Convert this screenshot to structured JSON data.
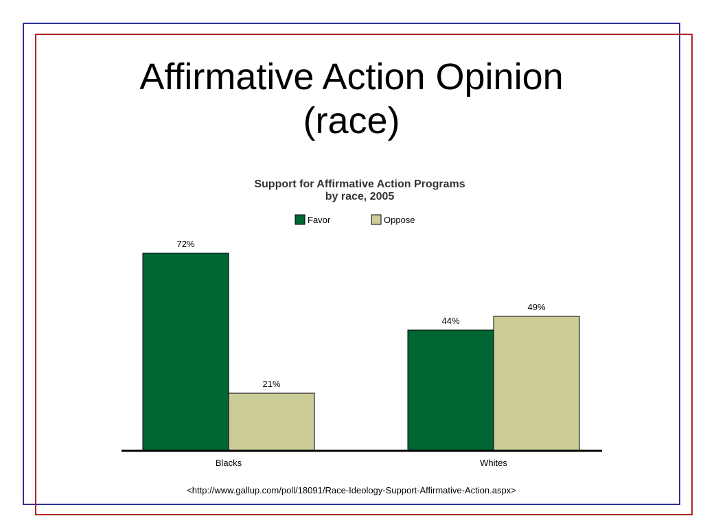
{
  "slide": {
    "title_line1": "Affirmative Action Opinion",
    "title_line2": "(race)",
    "source": "<http://www.gallup.com/poll/18091/Race-Ideology-Support-Affirmative-Action.aspx>"
  },
  "colors": {
    "frame_blue": "#2e3192",
    "frame_red": "#b22226",
    "favor": "#006633",
    "oppose": "#cccc99"
  },
  "chart_data": {
    "type": "bar",
    "title": "Support for Affirmative Action Programs",
    "subtitle": "by race, 2005",
    "categories": [
      "Blacks",
      "Whites"
    ],
    "series": [
      {
        "name": "Favor",
        "values": [
          72,
          44
        ],
        "labels": [
          "72%",
          "44%"
        ],
        "color": "#006633"
      },
      {
        "name": "Oppose",
        "values": [
          21,
          49
        ],
        "labels": [
          "21%",
          "49%"
        ],
        "color": "#cccc99"
      }
    ],
    "ylim": [
      0,
      100
    ],
    "grid": false,
    "legend": "top-center",
    "xlabel": "",
    "ylabel": ""
  }
}
